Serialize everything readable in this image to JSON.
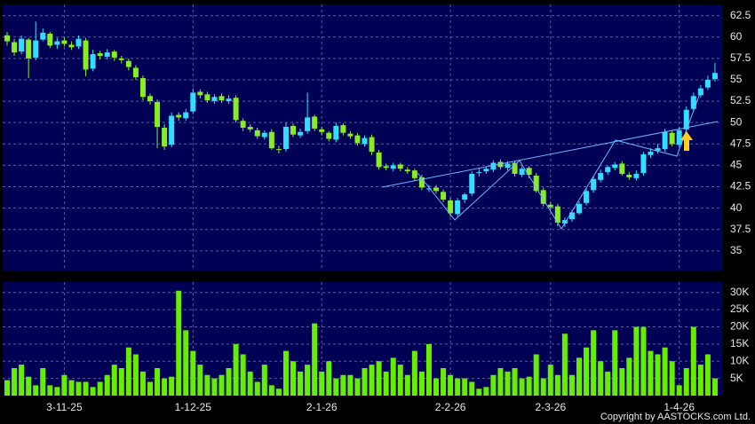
{
  "chart_data": [
    {
      "type": "candlestick",
      "up_color": "#33ddff",
      "down_color": "#88ee22",
      "grid": true,
      "categories": [
        null,
        null,
        null,
        null,
        null,
        null,
        null,
        null,
        "3-11-25",
        null,
        null,
        null,
        null,
        null,
        null,
        null,
        null,
        null,
        null,
        null,
        null,
        null,
        null,
        null,
        null,
        null,
        "1-12-25",
        null,
        null,
        null,
        null,
        null,
        null,
        null,
        null,
        null,
        null,
        null,
        null,
        null,
        null,
        null,
        null,
        null,
        "2-1-26",
        null,
        null,
        null,
        null,
        null,
        null,
        null,
        null,
        null,
        null,
        null,
        null,
        null,
        null,
        null,
        null,
        null,
        "2-2-26",
        null,
        null,
        null,
        null,
        null,
        null,
        null,
        null,
        null,
        null,
        null,
        null,
        null,
        "2-3-26",
        null,
        null,
        null,
        null,
        null,
        null,
        null,
        null,
        null,
        null,
        null,
        null,
        null,
        null,
        null,
        null,
        null,
        "1-4-26",
        null,
        null,
        null,
        null,
        null
      ],
      "open": [
        60.2,
        59.4,
        58.3,
        59.7,
        57.6,
        59.7,
        60.4,
        59.1,
        59.6,
        59.1,
        58.9,
        59.6,
        56.3,
        58.1,
        57.7,
        58.3,
        57.5,
        57.2,
        56.4,
        55.2,
        53.1,
        52.4,
        49.4,
        47.4,
        50.9,
        50.5,
        51.3,
        53.6,
        53.3,
        52.5,
        53.1,
        52.5,
        52.9,
        50.2,
        49.5,
        49.1,
        48.3,
        48.9,
        46.9,
        46.9,
        49.6,
        48.5,
        49.0,
        50.7,
        49.2,
        48.8,
        48.0,
        49.7,
        48.7,
        48.5,
        47.5,
        48.3,
        46.5,
        44.9,
        44.6,
        45.1,
        44.5,
        44.4,
        43.6,
        42.3,
        42.4,
        41.9,
        40.9,
        39.3,
        41.0,
        41.7,
        44.1,
        44.3,
        44.5,
        45.4,
        44.7,
        45.3,
        43.9,
        44.7,
        43.8,
        42.1,
        40.4,
        40.2,
        38.2,
        38.7,
        39.4,
        40.6,
        42.1,
        43.3,
        44.2,
        44.7,
        45.2,
        43.9,
        43.5,
        44.1,
        46.2,
        46.7,
        46.9,
        48.8,
        47.4,
        49.2,
        51.6,
        53.2,
        54.1,
        55.1
      ],
      "high": [
        60.6,
        59.8,
        60.2,
        59.9,
        61.8,
        61.0,
        60.6,
        59.9,
        60.0,
        59.5,
        60.2,
        59.9,
        58.5,
        58.4,
        58.6,
        58.5,
        57.8,
        57.5,
        56.7,
        55.5,
        53.4,
        52.7,
        49.8,
        51.2,
        51.2,
        51.6,
        54.0,
        53.9,
        53.6,
        53.3,
        53.4,
        53.2,
        53.2,
        50.5,
        49.8,
        49.4,
        49.1,
        49.2,
        47.3,
        50.0,
        49.9,
        49.3,
        53.5,
        50.9,
        49.5,
        49.0,
        50.0,
        49.9,
        49.0,
        48.8,
        48.5,
        48.6,
        46.8,
        45.2,
        45.3,
        45.3,
        44.8,
        44.6,
        43.9,
        42.7,
        42.7,
        42.2,
        41.2,
        41.2,
        41.8,
        44.3,
        44.6,
        44.9,
        45.6,
        45.7,
        45.5,
        45.5,
        44.9,
        44.9,
        44.1,
        42.4,
        40.7,
        40.5,
        38.9,
        39.8,
        40.8,
        42.3,
        43.7,
        44.5,
        45.0,
        45.4,
        45.5,
        44.2,
        44.4,
        46.6,
        47.0,
        47.5,
        49.3,
        49.1,
        49.5,
        51.9,
        53.5,
        54.4,
        55.5,
        57.0
      ],
      "low": [
        59.0,
        57.8,
        58.0,
        55.2,
        57.3,
        59.5,
        58.7,
        58.6,
        58.9,
        58.5,
        58.6,
        55.4,
        56.0,
        57.4,
        57.4,
        57.2,
        56.9,
        56.1,
        55.0,
        52.6,
        52.1,
        47.0,
        46.8,
        47.1,
        50.2,
        50.2,
        51.0,
        52.8,
        52.3,
        52.2,
        52.3,
        52.2,
        50.0,
        49.0,
        48.9,
        48.1,
        48.0,
        46.8,
        46.4,
        46.6,
        48.3,
        48.2,
        48.7,
        49.0,
        48.5,
        47.8,
        47.7,
        48.5,
        48.1,
        47.3,
        47.2,
        46.2,
        44.5,
        44.4,
        44.3,
        44.3,
        44.0,
        43.2,
        42.1,
        41.9,
        41.7,
        40.7,
        39.0,
        39.0,
        40.6,
        41.4,
        43.7,
        44.0,
        44.2,
        44.5,
        44.4,
        43.7,
        43.6,
        43.5,
        41.8,
        40.2,
        39.8,
        37.9,
        37.8,
        38.4,
        39.2,
        40.3,
        41.8,
        43.0,
        43.9,
        44.4,
        43.8,
        43.3,
        43.2,
        43.8,
        45.9,
        46.4,
        46.6,
        47.2,
        47.1,
        48.9,
        51.3,
        52.9,
        53.8,
        54.8
      ],
      "close": [
        59.5,
        58.2,
        59.8,
        57.5,
        59.6,
        60.5,
        59.0,
        59.5,
        59.2,
        58.8,
        59.8,
        56.2,
        58.0,
        57.8,
        58.2,
        57.6,
        57.3,
        56.5,
        55.3,
        53.0,
        52.5,
        49.5,
        47.2,
        50.8,
        50.6,
        51.2,
        53.5,
        53.2,
        52.6,
        53.0,
        52.6,
        52.8,
        50.3,
        49.4,
        49.2,
        48.4,
        48.8,
        47.0,
        46.8,
        49.5,
        48.6,
        48.9,
        50.6,
        49.3,
        48.9,
        48.1,
        49.6,
        48.8,
        48.4,
        47.6,
        48.2,
        46.6,
        44.8,
        44.7,
        45.0,
        44.6,
        44.3,
        43.5,
        42.4,
        42.3,
        42.0,
        41.0,
        39.4,
        40.9,
        41.6,
        44.0,
        44.2,
        44.6,
        45.3,
        44.8,
        45.2,
        44.0,
        44.6,
        43.9,
        42.0,
        40.5,
        40.1,
        38.3,
        38.6,
        39.5,
        40.5,
        42.0,
        43.4,
        44.1,
        44.8,
        45.1,
        44.0,
        43.6,
        44.0,
        46.3,
        46.6,
        47.0,
        48.9,
        47.5,
        49.1,
        51.5,
        53.1,
        54.0,
        55.0,
        55.8
      ],
      "ylim": [
        32.7,
        63.5
      ],
      "yticks": [
        35,
        37.5,
        40,
        42.5,
        45,
        47.5,
        50,
        52.5,
        55,
        57.5,
        60,
        62.5
      ]
    },
    {
      "type": "bar",
      "color": "#66ee00",
      "grid": true,
      "values": [
        4500,
        8000,
        9000,
        5500,
        3000,
        8000,
        3000,
        2500,
        6000,
        4500,
        4000,
        4000,
        2500,
        4000,
        6000,
        9000,
        8000,
        14000,
        12000,
        7000,
        4000,
        8000,
        5000,
        5500,
        30500,
        19000,
        13000,
        9000,
        6000,
        5000,
        6000,
        8000,
        15000,
        12000,
        7000,
        4000,
        9000,
        3000,
        2000,
        13000,
        10000,
        7000,
        9000,
        21000,
        7000,
        10000,
        5000,
        6000,
        6000,
        5000,
        8000,
        9000,
        10000,
        7000,
        11000,
        9000,
        6000,
        13000,
        7000,
        15000,
        5000,
        8000,
        6000,
        5000,
        5000,
        4000,
        2000,
        2500,
        6000,
        8000,
        7000,
        8000,
        5000,
        5500,
        12000,
        5000,
        9000,
        6000,
        18000,
        6000,
        11000,
        14000,
        19000,
        10000,
        7000,
        19000,
        8000,
        11000,
        20000,
        20000,
        13000,
        12000,
        14000,
        10000,
        3000,
        8000,
        20000,
        9000,
        12000,
        5000
      ],
      "ylim": [
        0,
        32500
      ],
      "yticks": [
        {
          "value": 5000,
          "label": "5K"
        },
        {
          "value": 10000,
          "label": "10K"
        },
        {
          "value": 15000,
          "label": "15K"
        },
        {
          "value": 20000,
          "label": "20K"
        },
        {
          "value": 25000,
          "label": "25K"
        },
        {
          "value": 30000,
          "label": "30K"
        }
      ]
    }
  ],
  "copyright": "Copyright by AASTOCKS.com Ltd."
}
